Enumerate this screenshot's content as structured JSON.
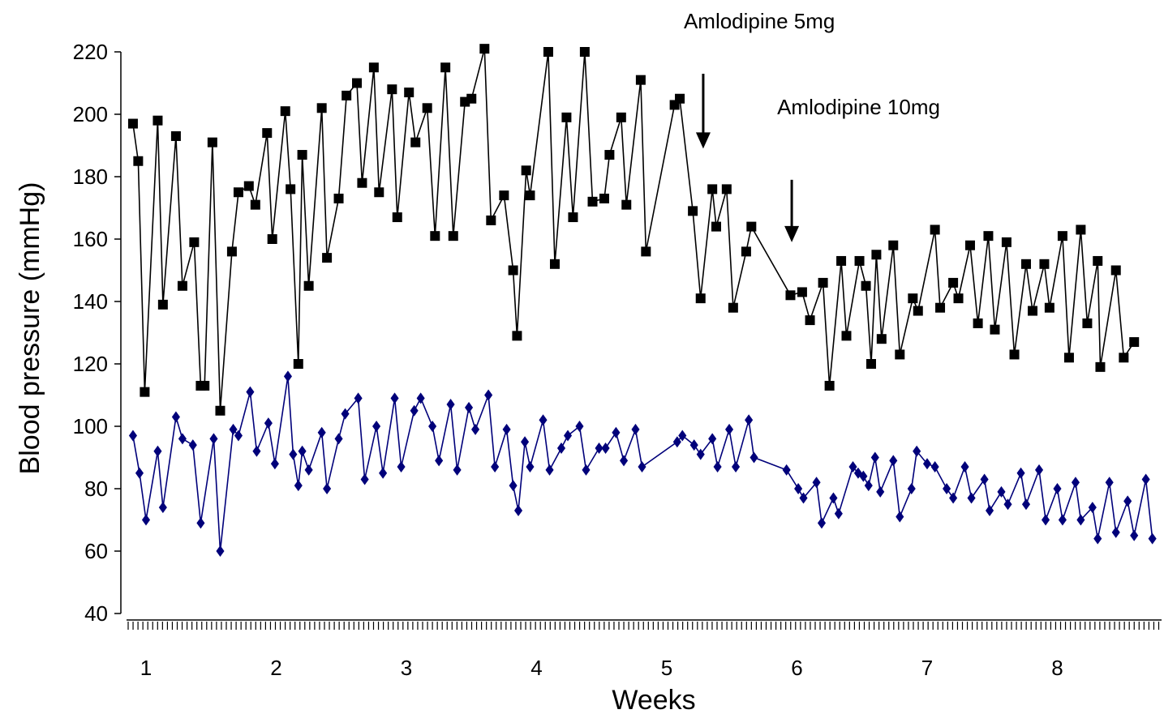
{
  "chart_data": {
    "type": "line",
    "title": "",
    "xlabel": "Weeks",
    "ylabel": "Blood pressure (mmHg)",
    "xlim": [
      0.9,
      8.8
    ],
    "ylim": [
      40,
      220
    ],
    "yticks": [
      40,
      60,
      80,
      100,
      120,
      140,
      160,
      180,
      200,
      220
    ],
    "xticks": [
      1,
      2,
      3,
      4,
      5,
      6,
      7,
      8
    ],
    "grid": false,
    "legend": "none",
    "series": [
      {
        "marker": "square",
        "color": "#000000",
        "line_color": "#000000",
        "points": [
          [
            0.9,
            197
          ],
          [
            0.94,
            185
          ],
          [
            0.99,
            111
          ],
          [
            1.09,
            198
          ],
          [
            1.13,
            139
          ],
          [
            1.23,
            193
          ],
          [
            1.28,
            145
          ],
          [
            1.37,
            159
          ],
          [
            1.42,
            113
          ],
          [
            1.45,
            113
          ],
          [
            1.51,
            191
          ],
          [
            1.57,
            105
          ],
          [
            1.66,
            156
          ],
          [
            1.71,
            175
          ],
          [
            1.79,
            177
          ],
          [
            1.84,
            171
          ],
          [
            1.93,
            194
          ],
          [
            1.97,
            160
          ],
          [
            2.07,
            201
          ],
          [
            2.11,
            176
          ],
          [
            2.17,
            120
          ],
          [
            2.2,
            187
          ],
          [
            2.25,
            145
          ],
          [
            2.35,
            202
          ],
          [
            2.39,
            154
          ],
          [
            2.48,
            173
          ],
          [
            2.54,
            206
          ],
          [
            2.62,
            210
          ],
          [
            2.66,
            178
          ],
          [
            2.75,
            215
          ],
          [
            2.79,
            175
          ],
          [
            2.89,
            208
          ],
          [
            2.93,
            167
          ],
          [
            3.02,
            207
          ],
          [
            3.07,
            191
          ],
          [
            3.16,
            202
          ],
          [
            3.22,
            161
          ],
          [
            3.3,
            215
          ],
          [
            3.36,
            161
          ],
          [
            3.45,
            204
          ],
          [
            3.5,
            205
          ],
          [
            3.6,
            221
          ],
          [
            3.65,
            166
          ],
          [
            3.75,
            174
          ],
          [
            3.82,
            150
          ],
          [
            3.85,
            129
          ],
          [
            3.92,
            182
          ],
          [
            3.95,
            174
          ],
          [
            4.09,
            220
          ],
          [
            4.14,
            152
          ],
          [
            4.23,
            199
          ],
          [
            4.28,
            167
          ],
          [
            4.37,
            220
          ],
          [
            4.43,
            172
          ],
          [
            4.52,
            173
          ],
          [
            4.56,
            187
          ],
          [
            4.65,
            199
          ],
          [
            4.69,
            171
          ],
          [
            4.8,
            211
          ],
          [
            4.84,
            156
          ],
          [
            5.06,
            203
          ],
          [
            5.1,
            205
          ],
          [
            5.2,
            169
          ],
          [
            5.26,
            141
          ],
          [
            5.35,
            176
          ],
          [
            5.38,
            164
          ],
          [
            5.46,
            176
          ],
          [
            5.51,
            138
          ],
          [
            5.61,
            156
          ],
          [
            5.65,
            164
          ],
          [
            5.95,
            142
          ],
          [
            6.04,
            143
          ],
          [
            6.1,
            134
          ],
          [
            6.2,
            146
          ],
          [
            6.25,
            113
          ],
          [
            6.34,
            153
          ],
          [
            6.38,
            129
          ],
          [
            6.48,
            153
          ],
          [
            6.53,
            145
          ],
          [
            6.57,
            120
          ],
          [
            6.61,
            155
          ],
          [
            6.65,
            128
          ],
          [
            6.74,
            158
          ],
          [
            6.79,
            123
          ],
          [
            6.89,
            141
          ],
          [
            6.93,
            137
          ],
          [
            7.06,
            163
          ],
          [
            7.1,
            138
          ],
          [
            7.2,
            146
          ],
          [
            7.24,
            141
          ],
          [
            7.33,
            158
          ],
          [
            7.39,
            133
          ],
          [
            7.47,
            161
          ],
          [
            7.52,
            131
          ],
          [
            7.61,
            159
          ],
          [
            7.67,
            123
          ],
          [
            7.76,
            152
          ],
          [
            7.81,
            137
          ],
          [
            7.9,
            152
          ],
          [
            7.94,
            138
          ],
          [
            8.04,
            161
          ],
          [
            8.09,
            122
          ],
          [
            8.18,
            163
          ],
          [
            8.23,
            133
          ],
          [
            8.31,
            153
          ],
          [
            8.33,
            119
          ],
          [
            8.45,
            150
          ],
          [
            8.51,
            122
          ],
          [
            8.59,
            127
          ]
        ]
      },
      {
        "marker": "diamond",
        "color": "#00007a",
        "line_color": "#00007a",
        "points": [
          [
            0.9,
            97
          ],
          [
            0.95,
            85
          ],
          [
            1.0,
            70
          ],
          [
            1.09,
            92
          ],
          [
            1.13,
            74
          ],
          [
            1.23,
            103
          ],
          [
            1.28,
            96
          ],
          [
            1.36,
            94
          ],
          [
            1.42,
            69
          ],
          [
            1.52,
            96
          ],
          [
            1.57,
            60
          ],
          [
            1.67,
            99
          ],
          [
            1.71,
            97
          ],
          [
            1.8,
            111
          ],
          [
            1.85,
            92
          ],
          [
            1.94,
            101
          ],
          [
            1.99,
            88
          ],
          [
            2.09,
            116
          ],
          [
            2.13,
            91
          ],
          [
            2.17,
            81
          ],
          [
            2.2,
            92
          ],
          [
            2.25,
            86
          ],
          [
            2.35,
            98
          ],
          [
            2.39,
            80
          ],
          [
            2.48,
            96
          ],
          [
            2.53,
            104
          ],
          [
            2.63,
            109
          ],
          [
            2.68,
            83
          ],
          [
            2.77,
            100
          ],
          [
            2.82,
            85
          ],
          [
            2.91,
            109
          ],
          [
            2.96,
            87
          ],
          [
            3.06,
            105
          ],
          [
            3.11,
            109
          ],
          [
            3.2,
            100
          ],
          [
            3.25,
            89
          ],
          [
            3.34,
            107
          ],
          [
            3.39,
            86
          ],
          [
            3.48,
            106
          ],
          [
            3.53,
            99
          ],
          [
            3.63,
            110
          ],
          [
            3.68,
            87
          ],
          [
            3.77,
            99
          ],
          [
            3.82,
            81
          ],
          [
            3.86,
            73
          ],
          [
            3.91,
            95
          ],
          [
            3.95,
            87
          ],
          [
            4.05,
            102
          ],
          [
            4.1,
            86
          ],
          [
            4.19,
            93
          ],
          [
            4.24,
            97
          ],
          [
            4.33,
            100
          ],
          [
            4.38,
            86
          ],
          [
            4.48,
            93
          ],
          [
            4.53,
            93
          ],
          [
            4.61,
            98
          ],
          [
            4.67,
            89
          ],
          [
            4.76,
            99
          ],
          [
            4.81,
            87
          ],
          [
            5.08,
            95
          ],
          [
            5.12,
            97
          ],
          [
            5.21,
            94
          ],
          [
            5.26,
            91
          ],
          [
            5.35,
            96
          ],
          [
            5.39,
            87
          ],
          [
            5.48,
            99
          ],
          [
            5.53,
            87
          ],
          [
            5.63,
            102
          ],
          [
            5.67,
            90
          ],
          [
            5.92,
            86
          ],
          [
            6.01,
            80
          ],
          [
            6.05,
            77
          ],
          [
            6.15,
            82
          ],
          [
            6.19,
            69
          ],
          [
            6.28,
            77
          ],
          [
            6.32,
            72
          ],
          [
            6.43,
            87
          ],
          [
            6.47,
            85
          ],
          [
            6.51,
            84
          ],
          [
            6.55,
            81
          ],
          [
            6.6,
            90
          ],
          [
            6.64,
            79
          ],
          [
            6.74,
            89
          ],
          [
            6.79,
            71
          ],
          [
            6.88,
            80
          ],
          [
            6.92,
            92
          ],
          [
            7.0,
            88
          ],
          [
            7.06,
            87
          ],
          [
            7.15,
            80
          ],
          [
            7.2,
            77
          ],
          [
            7.29,
            87
          ],
          [
            7.34,
            77
          ],
          [
            7.44,
            83
          ],
          [
            7.48,
            73
          ],
          [
            7.57,
            79
          ],
          [
            7.62,
            75
          ],
          [
            7.72,
            85
          ],
          [
            7.76,
            75
          ],
          [
            7.86,
            86
          ],
          [
            7.91,
            70
          ],
          [
            8.0,
            80
          ],
          [
            8.04,
            70
          ],
          [
            8.14,
            82
          ],
          [
            8.18,
            70
          ],
          [
            8.27,
            74
          ],
          [
            8.31,
            64
          ],
          [
            8.4,
            82
          ],
          [
            8.45,
            66
          ],
          [
            8.54,
            76
          ],
          [
            8.59,
            65
          ],
          [
            8.68,
            83
          ],
          [
            8.73,
            64
          ]
        ]
      }
    ],
    "annotations": [
      {
        "text": "Amlodipine 5mg",
        "x": 5.28,
        "arrow_top": 213,
        "arrow_tip": 189
      },
      {
        "text": "Amlodipine 10mg",
        "x": 5.96,
        "arrow_top": 179,
        "arrow_tip": 159
      }
    ]
  }
}
